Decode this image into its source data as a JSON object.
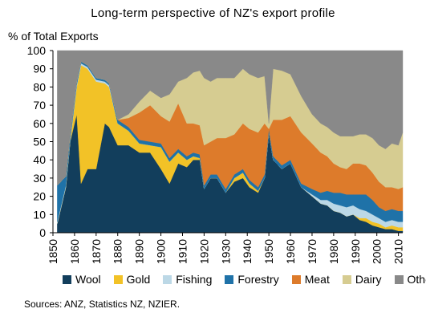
{
  "chart_data": {
    "type": "area",
    "stacked": true,
    "title": "Long-term perspective of NZ's export profile",
    "ylabel": "% of Total Exports",
    "xlabel": "",
    "ylim": [
      0,
      100
    ],
    "xlim": [
      1850,
      2012
    ],
    "yticks": [
      0,
      10,
      20,
      30,
      40,
      50,
      60,
      70,
      80,
      90,
      100
    ],
    "xticks": [
      1850,
      1860,
      1870,
      1880,
      1890,
      1900,
      1910,
      1920,
      1930,
      1940,
      1950,
      1960,
      1970,
      1980,
      1990,
      2000,
      2010
    ],
    "grid": false,
    "legend_position": "bottom",
    "x": [
      1852,
      1856,
      1858,
      1861,
      1863,
      1866,
      1870,
      1874,
      1876,
      1880,
      1885,
      1890,
      1895,
      1900,
      1904,
      1908,
      1912,
      1915,
      1918,
      1920,
      1923,
      1926,
      1930,
      1934,
      1938,
      1941,
      1945,
      1948,
      1950,
      1952,
      1956,
      1960,
      1965,
      1970,
      1974,
      1977,
      1980,
      1983,
      1986,
      1989,
      1992,
      1995,
      1998,
      2001,
      2004,
      2007,
      2010,
      2012
    ],
    "series": [
      {
        "name": "Wool",
        "color": "#123e5c",
        "values": [
          5,
          25,
          50,
          65,
          27,
          35,
          35,
          60,
          58,
          48,
          48,
          44,
          44,
          35,
          27,
          38,
          36,
          40,
          40,
          24,
          30,
          30,
          22,
          28,
          30,
          25,
          22,
          30,
          55,
          40,
          35,
          38,
          25,
          20,
          16,
          15,
          12,
          11,
          9,
          10,
          7,
          6,
          4,
          3,
          2,
          2,
          1,
          1
        ]
      },
      {
        "name": "Gold",
        "color": "#f2c227",
        "values": [
          0,
          0,
          0,
          15,
          65,
          55,
          48,
          22,
          22,
          12,
          8,
          5,
          4,
          12,
          12,
          6,
          4,
          2,
          1,
          0,
          0,
          0,
          0,
          2,
          3,
          2,
          1,
          0,
          0,
          0,
          0,
          0,
          0,
          0,
          0,
          0,
          0,
          0,
          0,
          0,
          1,
          2,
          2,
          2,
          1,
          2,
          2,
          2
        ]
      },
      {
        "name": "Fishing",
        "color": "#bcd8e6",
        "values": [
          1,
          1,
          1,
          1,
          1,
          1,
          1,
          1,
          1,
          0,
          0,
          0,
          0,
          0,
          0,
          0,
          0,
          0,
          0,
          0,
          0,
          0,
          0,
          0,
          0,
          0,
          0,
          0,
          0,
          0,
          0,
          0,
          0,
          1,
          2,
          3,
          4,
          4,
          5,
          5,
          5,
          4,
          4,
          3,
          3,
          3,
          3,
          3
        ]
      },
      {
        "name": "Forestry",
        "color": "#1f72a8",
        "values": [
          20,
          5,
          3,
          2,
          1,
          1,
          1,
          1,
          1,
          2,
          2,
          2,
          2,
          2,
          2,
          2,
          2,
          2,
          2,
          2,
          2,
          2,
          2,
          2,
          2,
          2,
          2,
          2,
          2,
          2,
          2,
          2,
          2,
          3,
          4,
          5,
          6,
          7,
          7,
          6,
          8,
          9,
          8,
          6,
          6,
          6,
          6,
          6
        ]
      },
      {
        "name": "Meat",
        "color": "#dd7b2b",
        "values": [
          0,
          0,
          0,
          0,
          0,
          0,
          0,
          0,
          0,
          0,
          5,
          15,
          20,
          15,
          20,
          25,
          18,
          16,
          16,
          22,
          18,
          20,
          28,
          22,
          25,
          28,
          30,
          28,
          0,
          20,
          25,
          24,
          28,
          25,
          22,
          19,
          16,
          14,
          14,
          17,
          17,
          16,
          15,
          14,
          13,
          12,
          12,
          13
        ]
      },
      {
        "name": "Dairy",
        "color": "#d6cc91",
        "values": [
          0,
          0,
          0,
          0,
          0,
          0,
          0,
          0,
          0,
          0,
          2,
          6,
          8,
          10,
          15,
          12,
          25,
          28,
          30,
          37,
          33,
          33,
          33,
          31,
          30,
          30,
          30,
          26,
          3,
          28,
          27,
          23,
          20,
          16,
          16,
          16,
          17,
          17,
          18,
          15,
          16,
          17,
          19,
          20,
          21,
          24,
          24,
          30
        ]
      },
      {
        "name": "Other",
        "color": "#898989",
        "values": [
          74,
          69,
          46,
          17,
          6,
          8,
          15,
          16,
          18,
          38,
          35,
          28,
          22,
          26,
          24,
          17,
          15,
          12,
          11,
          15,
          17,
          15,
          15,
          15,
          10,
          13,
          15,
          14,
          40,
          10,
          11,
          13,
          25,
          35,
          40,
          42,
          45,
          47,
          47,
          47,
          46,
          46,
          48,
          52,
          54,
          51,
          52,
          45
        ]
      }
    ],
    "source_note": "Sources: ANZ, Statistics NZ, NZIER."
  }
}
